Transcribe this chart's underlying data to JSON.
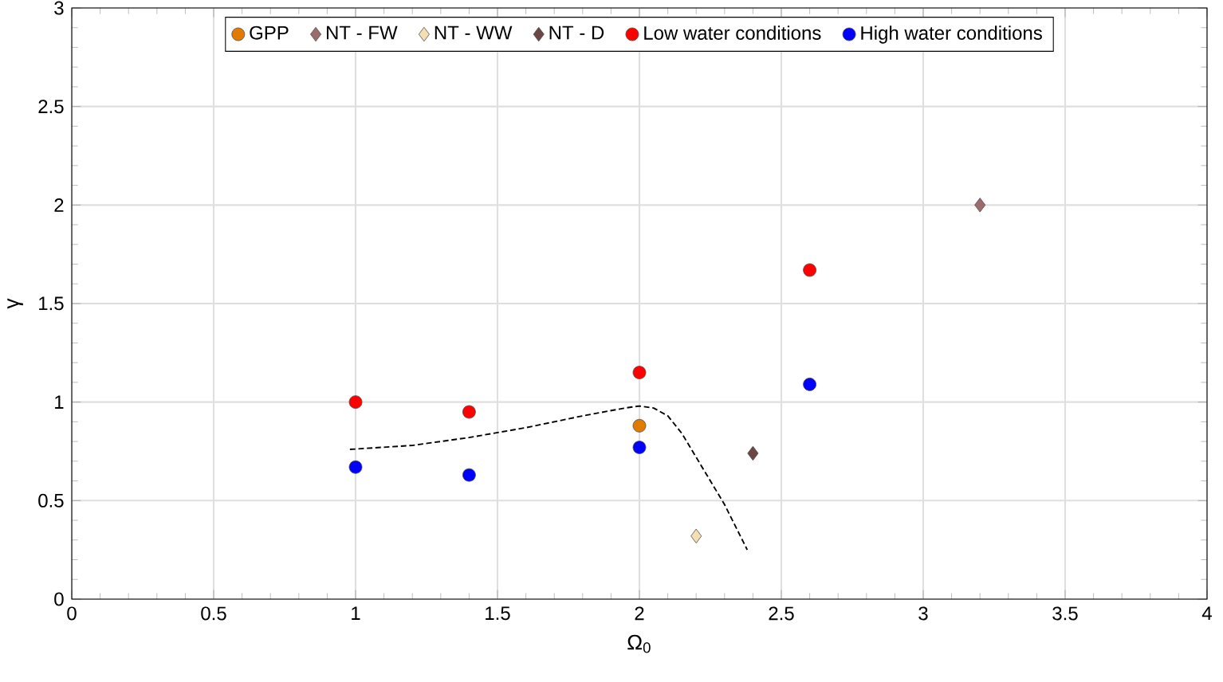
{
  "chart_data": {
    "type": "scatter",
    "xlabel": "Ω$_{0}$",
    "ylabel": "γ",
    "xlim": [
      0,
      4
    ],
    "xticks": [
      0,
      0.5,
      1,
      1.5,
      2,
      2.5,
      3,
      3.5,
      4
    ],
    "ylim": [
      0,
      3
    ],
    "yticks": [
      0,
      0.5,
      1,
      1.5,
      2,
      2.5,
      3
    ],
    "grid": true,
    "legend": "top",
    "series": [
      {
        "name": "GPP",
        "color": "#e07b00",
        "marker": "circle",
        "x": [
          2
        ],
        "values": [
          0.88
        ]
      },
      {
        "name": "NT - FW",
        "color": "#9c6b6b",
        "marker": "diamond",
        "x": [
          3.2
        ],
        "values": [
          2.0
        ]
      },
      {
        "name": "NT - WW",
        "color": "#f5deb3",
        "marker": "diamond",
        "x": [
          2.2
        ],
        "values": [
          0.32
        ]
      },
      {
        "name": "NT - D",
        "color": "#6e4545",
        "marker": "diamond",
        "x": [
          2.4
        ],
        "values": [
          0.74
        ]
      },
      {
        "name": "Low water conditions",
        "color": "#ff0000",
        "marker": "circle",
        "x": [
          1,
          1.4,
          2,
          2.6
        ],
        "values": [
          1.0,
          0.95,
          1.15,
          1.67
        ]
      },
      {
        "name": "High water conditions",
        "color": "#0000ff",
        "marker": "circle",
        "x": [
          1,
          1.4,
          2,
          2.6
        ],
        "values": [
          0.67,
          0.63,
          0.77,
          1.09
        ]
      },
      {
        "type": "line",
        "color": "#000000",
        "marker": "none",
        "line_style": "dashed",
        "x": [
          0.98,
          1.2,
          1.4,
          1.6,
          1.8,
          1.95,
          2.0,
          2.05,
          2.1,
          2.15,
          2.2,
          2.3,
          2.38
        ],
        "values": [
          0.76,
          0.78,
          0.82,
          0.87,
          0.93,
          0.97,
          0.98,
          0.97,
          0.93,
          0.84,
          0.72,
          0.48,
          0.25
        ]
      }
    ]
  }
}
